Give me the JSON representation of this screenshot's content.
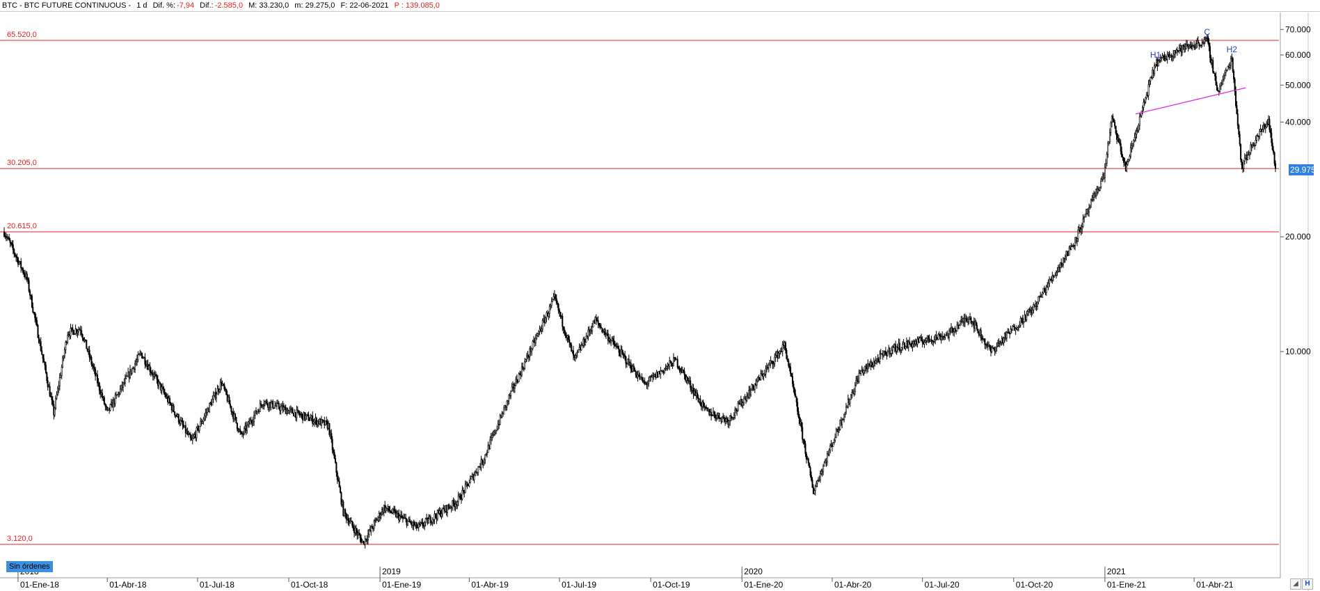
{
  "header": {
    "symbol": "BTC - BTC FUTURE CONTINUOUS -",
    "timeframe": "1 d",
    "pct_label": "Dif. %:",
    "pct_value": "-7,94",
    "diff_label": "Dif.:",
    "diff_value": "-2.585,0",
    "max": "M: 33.230,0",
    "min": "m: 29.275,0",
    "date": "F: 22-06-2021",
    "volume": "P : 139.085,0"
  },
  "orders_badge": "Sin órdenes",
  "colors": {
    "level_line": "#e02020",
    "trendline": "#e020e0",
    "candles": "#000000",
    "annotation": "#1f3fd6",
    "price_tag": "#2f7fdc"
  },
  "chart_data": {
    "type": "candlestick",
    "scale": "log",
    "title": "",
    "xlabel": "",
    "ylabel": "",
    "y_ticks": [
      "70.000",
      "60.000",
      "50.000",
      "40.000",
      "20.000",
      "10.000"
    ],
    "y_tick_values": [
      70000,
      60000,
      50000,
      40000,
      20000,
      10000
    ],
    "x_ticks": [
      "01-Ene-18",
      "01-Abr-18",
      "01-Jul-18",
      "01-Oct-18",
      "01-Ene-19",
      "01-Abr-19",
      "01-Jul-19",
      "01-Oct-19",
      "01-Ene-20",
      "01-Abr-20",
      "01-Jul-20",
      "01-Oct-20",
      "01-Ene-21",
      "01-Abr-21"
    ],
    "x_tick_dates": [
      "2018-01-01",
      "2018-04-01",
      "2018-07-01",
      "2018-10-01",
      "2019-01-01",
      "2019-04-01",
      "2019-07-01",
      "2019-10-01",
      "2020-01-01",
      "2020-04-01",
      "2020-07-01",
      "2020-10-01",
      "2021-01-01",
      "2021-04-01"
    ],
    "year_labels": [
      "2018",
      "2019",
      "2020",
      "2021"
    ],
    "year_label_dates": [
      "2018-01-01",
      "2019-01-01",
      "2020-01-01",
      "2021-01-01"
    ],
    "x_range": [
      "2017-12-18",
      "2021-06-22"
    ],
    "last_price": "29.975",
    "last_price_value": 29975,
    "price_path": [
      [
        "2017-12-18",
        20615
      ],
      [
        "2018-01-10",
        15500
      ],
      [
        "2018-02-06",
        6900
      ],
      [
        "2018-02-20",
        11200
      ],
      [
        "2018-03-05",
        11500
      ],
      [
        "2018-04-01",
        6900
      ],
      [
        "2018-05-05",
        9900
      ],
      [
        "2018-06-25",
        5800
      ],
      [
        "2018-07-25",
        8300
      ],
      [
        "2018-08-14",
        6000
      ],
      [
        "2018-09-05",
        7400
      ],
      [
        "2018-11-10",
        6400
      ],
      [
        "2018-11-25",
        3800
      ],
      [
        "2018-12-15",
        3150
      ],
      [
        "2019-01-05",
        3900
      ],
      [
        "2019-02-08",
        3450
      ],
      [
        "2019-03-20",
        4050
      ],
      [
        "2019-04-15",
        5200
      ],
      [
        "2019-05-15",
        8000
      ],
      [
        "2019-06-26",
        13800
      ],
      [
        "2019-07-16",
        9500
      ],
      [
        "2019-08-06",
        12100
      ],
      [
        "2019-09-25",
        8200
      ],
      [
        "2019-10-26",
        9500
      ],
      [
        "2019-11-25",
        7000
      ],
      [
        "2019-12-18",
        6600
      ],
      [
        "2020-02-13",
        10400
      ],
      [
        "2020-03-13",
        4300
      ],
      [
        "2020-04-29",
        8800
      ],
      [
        "2020-06-01",
        10200
      ],
      [
        "2020-07-27",
        11100
      ],
      [
        "2020-08-17",
        12400
      ],
      [
        "2020-09-08",
        10000
      ],
      [
        "2020-10-21",
        13000
      ],
      [
        "2020-12-01",
        19400
      ],
      [
        "2020-12-31",
        29000
      ],
      [
        "2021-01-08",
        41000
      ],
      [
        "2021-01-22",
        30200
      ],
      [
        "2021-02-21",
        57000
      ],
      [
        "2021-03-13",
        61500
      ],
      [
        "2021-04-14",
        65520
      ],
      [
        "2021-04-25",
        48000
      ],
      [
        "2021-05-09",
        59000
      ],
      [
        "2021-05-19",
        30500
      ],
      [
        "2021-05-30",
        35000
      ],
      [
        "2021-06-15",
        40500
      ],
      [
        "2021-06-22",
        29975
      ]
    ],
    "levels": [
      {
        "label": "65.520,0",
        "value": 65520
      },
      {
        "label": "30.205,0",
        "value": 30205
      },
      {
        "label": "20.615,0",
        "value": 20615
      },
      {
        "label": "3.120,0",
        "value": 3120
      }
    ],
    "trendline": {
      "from": [
        "2021-02-01",
        42000
      ],
      "to": [
        "2021-05-23",
        49200
      ]
    },
    "annotations": [
      {
        "text": "H1",
        "date": "2021-02-21",
        "value": 57000
      },
      {
        "text": "C",
        "date": "2021-04-14",
        "value": 65520
      },
      {
        "text": "H2",
        "date": "2021-05-09",
        "value": 59000
      }
    ]
  }
}
